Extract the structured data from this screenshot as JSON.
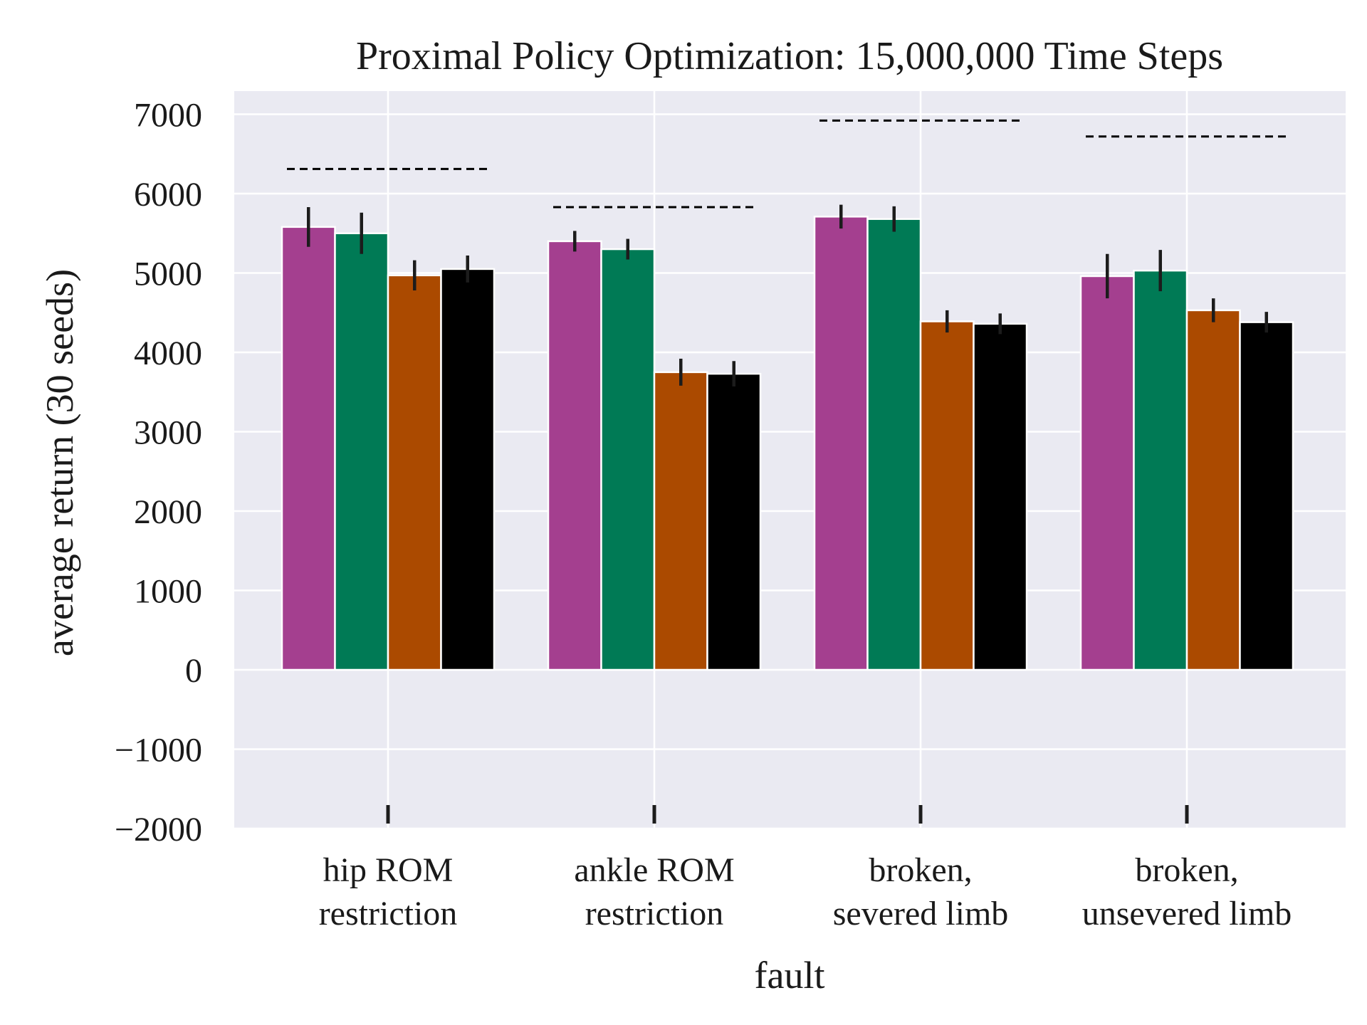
{
  "chart_data": {
    "type": "bar",
    "title": "Proximal Policy Optimization: 15,000,000 Time Steps",
    "xlabel": "fault",
    "ylabel": "average return (30 seeds)",
    "ylim": [
      -2000,
      7200
    ],
    "yticks": [
      7000,
      6000,
      5000,
      4000,
      3000,
      2000,
      1000,
      0,
      -1000,
      -2000
    ],
    "ytick_labels": [
      "7000",
      "6000",
      "5000",
      "4000",
      "3000",
      "2000",
      "1000",
      "0",
      "−1000",
      "−2000"
    ],
    "categories": [
      [
        "hip ROM",
        "restriction"
      ],
      [
        "ankle ROM",
        "restriction"
      ],
      [
        "broken,",
        "severed limb"
      ],
      [
        "broken,",
        "unsevered limb"
      ]
    ],
    "series": [
      {
        "color": "#a43f8f",
        "values": [
          5580,
          5400,
          5710,
          4960
        ],
        "err": [
          250,
          130,
          150,
          280
        ]
      },
      {
        "color": "#007a55",
        "values": [
          5500,
          5300,
          5680,
          5030
        ],
        "err": [
          260,
          130,
          160,
          260
        ]
      },
      {
        "color": "#ab4a00",
        "values": [
          4970,
          3750,
          4390,
          4530
        ],
        "err": [
          190,
          170,
          140,
          150
        ]
      },
      {
        "color": "#000000",
        "values": [
          5050,
          3730,
          4360,
          4380
        ],
        "err": [
          170,
          160,
          130,
          130
        ]
      }
    ],
    "reference_lines": [
      6310,
      5830,
      6920,
      6720
    ],
    "grid": true,
    "background": "#eaeaf2"
  }
}
